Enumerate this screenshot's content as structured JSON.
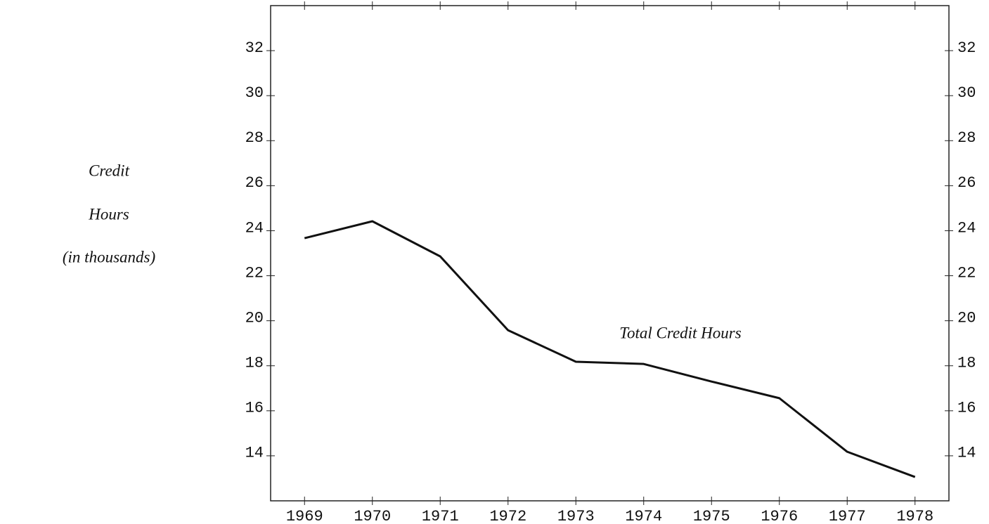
{
  "chart_data": {
    "type": "line",
    "ylabel": [
      "Credit",
      "Hours",
      "(in thousands)"
    ],
    "annotation": "Total Credit Hours",
    "categories": [
      "1969",
      "1970",
      "1971",
      "1972",
      "1973",
      "1974",
      "1975",
      "1976",
      "1977",
      "1978"
    ],
    "series": [
      {
        "name": "Total Credit Hours",
        "color": "#111111",
        "values": [
          23.67,
          24.42,
          22.86,
          19.58,
          18.18,
          18.08,
          17.3,
          16.56,
          14.18,
          13.06
        ]
      }
    ],
    "ylim": [
      12,
      34
    ],
    "yticks": [
      14,
      16,
      18,
      20,
      22,
      24,
      26,
      28,
      30,
      32
    ],
    "right_axis_labels": true
  }
}
